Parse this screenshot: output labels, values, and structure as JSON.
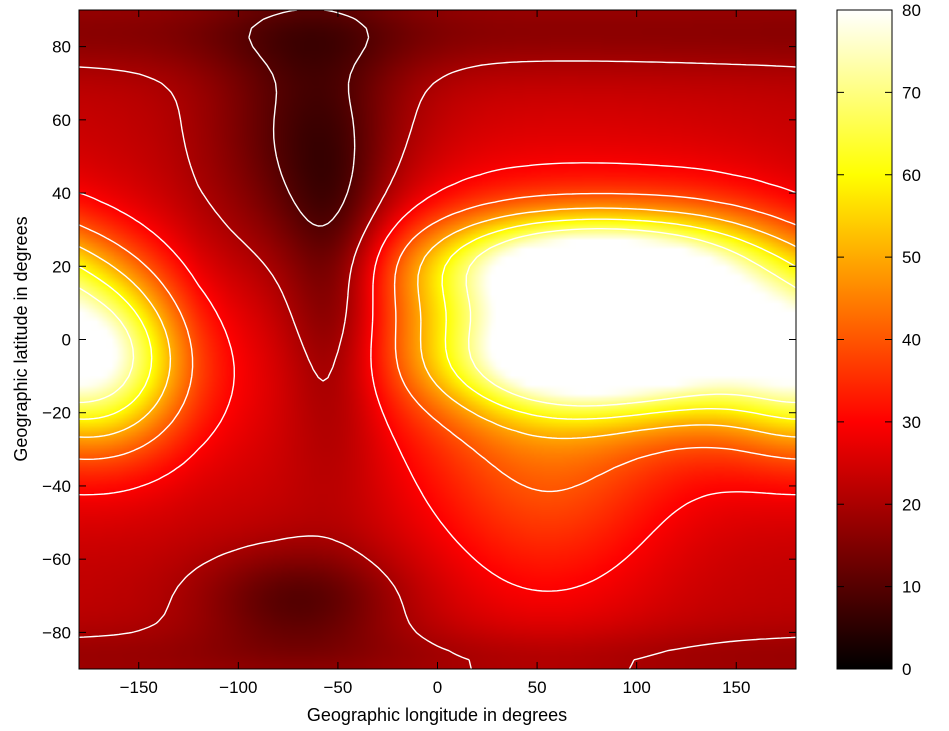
{
  "chart_data": {
    "type": "heatmap",
    "title": "",
    "xlabel": "Geographic longitude in degrees",
    "ylabel": "Geographic latitude in degrees",
    "xlim": [
      -180,
      180
    ],
    "ylim": [
      -90,
      90
    ],
    "xticks": [
      -150,
      -100,
      -50,
      0,
      50,
      100,
      150
    ],
    "yticks": [
      80,
      60,
      40,
      20,
      0,
      -20,
      -40,
      -60,
      -80
    ],
    "colormap": "hot",
    "colorbar": {
      "range": [
        0,
        80
      ],
      "ticks": [
        80,
        70,
        60,
        50,
        40,
        30,
        20,
        10,
        0
      ]
    },
    "contour_levels": [
      10,
      20,
      30,
      40,
      50,
      60,
      70
    ],
    "contour_color": "#ffffff",
    "grid": false,
    "field_features": [
      {
        "lon": -65,
        "lat": 55,
        "value": 5
      },
      {
        "lon": -50,
        "lat": 20,
        "value": 6
      },
      {
        "lon": -70,
        "lat": -72,
        "value": 7
      },
      {
        "lon": 70,
        "lat": 20,
        "value": 80
      },
      {
        "lon": 70,
        "lat": -4,
        "value": 80
      },
      {
        "lon": -170,
        "lat": -5,
        "value": 58
      },
      {
        "lon": 150,
        "lat": 5,
        "value": 62
      },
      {
        "lon": 70,
        "lat": 55,
        "value": 30
      },
      {
        "lon": 20,
        "lat": -60,
        "value": 24
      }
    ]
  }
}
